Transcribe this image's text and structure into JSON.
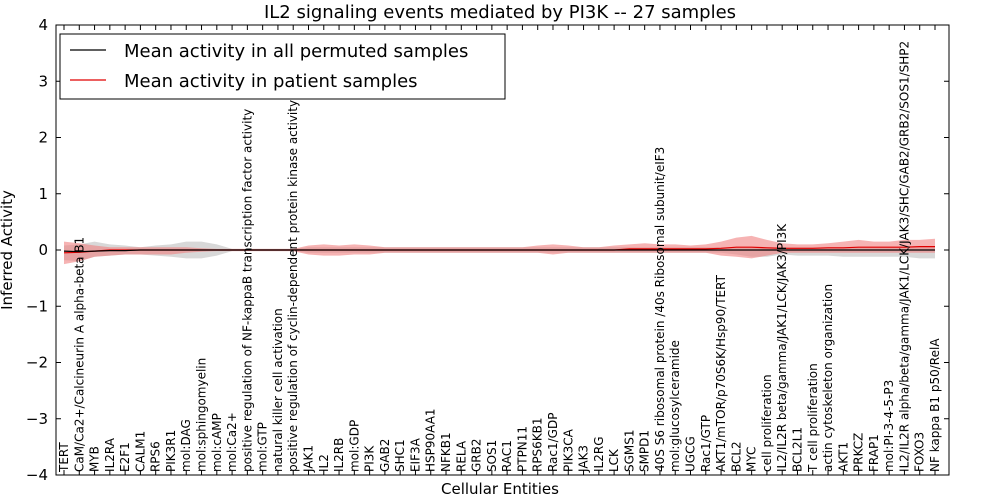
{
  "chart_data": {
    "type": "line",
    "title": "IL2 signaling events mediated by PI3K -- 27 samples",
    "xlabel": "Cellular Entities",
    "ylabel": "Inferred Activity",
    "ylim": [
      -4,
      4
    ],
    "yticks": [
      -4,
      -3,
      -2,
      -1,
      0,
      1,
      2,
      3,
      4
    ],
    "ytick_labels": [
      "−4",
      "−3",
      "−2",
      "−1",
      "0",
      "1",
      "2",
      "3",
      "4"
    ],
    "legend": {
      "placement": "top-left",
      "entries": [
        "Mean activity in all permuted samples",
        "Mean activity in patient samples"
      ]
    },
    "colors": {
      "permuted": "#000000",
      "patient": "#e00000",
      "patient_band": "#f08080",
      "permuted_band": "#c8c8c8"
    },
    "categories": [
      "TERT",
      "CaM/Ca2+/Calcineurin A alpha-beta B1",
      "MYB",
      "IL2RA",
      "E2F1",
      "CALM1",
      "RPS6",
      "PIK3R1",
      "mol:DAG",
      "mol:sphingomyelin",
      "mol:cAMP",
      "mol:Ca2+",
      "positive regulation of NF-kappaB transcription factor activity",
      "mol:GTP",
      "natural killer cell activation",
      "positive regulation of cyclin-dependent protein kinase activity",
      "JAK1",
      "IL2",
      "IL2RB",
      "mol:GDP",
      "PI3K",
      "GAB2",
      "SHC1",
      "EIF3A",
      "HSP90AA1",
      "NFKB1",
      "RELA",
      "GRB2",
      "SOS1",
      "RAC1",
      "PTPN11",
      "RPS6KB1",
      "Rac1/GDP",
      "PIK3CA",
      "JAK3",
      "IL2RG",
      "LCK",
      "SGMS1",
      "SMPD1",
      "40S S6 ribosomal protein /40s Ribosomal subunit/eIF3",
      "mol:glucosylceramide",
      "UGCG",
      "Rac1/GTP",
      "AKT1/mTOR/p70S6K/Hsp90/TERT",
      "BCL2",
      "MYC",
      "cell proliferation",
      "IL2/IL2R beta/gamma/JAK1/LCK/JAK3/PI3K",
      "BCL2L1",
      "T cell proliferation",
      "actin cytoskeleton organization",
      "AKT1",
      "PRKCZ",
      "FRAP1",
      "mol:PI-3-4-5-P3",
      "IL2/IL2R alpha/beta/gamma/JAK1/LCK/JAK3/SHC/GAB2/GRB2/SOS1/SHP2",
      "FOXO3",
      "NF kappa B1 p50/RelA"
    ],
    "series": [
      {
        "name": "Mean activity in all permuted samples",
        "values": [
          -0.02,
          -0.03,
          -0.02,
          -0.01,
          -0.01,
          0,
          0,
          0,
          0,
          0,
          0,
          0,
          0,
          0,
          0,
          0,
          0,
          0,
          0,
          0,
          0,
          0,
          0,
          0,
          0,
          0,
          0,
          0,
          0,
          0,
          0,
          0,
          0,
          0,
          0,
          0,
          0,
          0,
          0,
          0,
          0,
          0,
          0,
          0,
          0,
          0,
          0,
          0,
          0,
          0,
          0,
          0,
          0,
          0,
          0,
          0,
          0,
          0
        ],
        "upper": [
          0.08,
          0.1,
          0.15,
          0.1,
          0.08,
          0.05,
          0.08,
          0.1,
          0.15,
          0.15,
          0.1,
          0.02,
          0.02,
          0.02,
          0.02,
          0.02,
          0.05,
          0.05,
          0.05,
          0.05,
          0.05,
          0.05,
          0.05,
          0.05,
          0.05,
          0.05,
          0.05,
          0.05,
          0.05,
          0.05,
          0.05,
          0.05,
          0.05,
          0.05,
          0.05,
          0.05,
          0.05,
          0.05,
          0.05,
          0.05,
          0.05,
          0.05,
          0.05,
          0.05,
          0.05,
          0.05,
          0.05,
          0.05,
          0.05,
          0.05,
          0.05,
          0.05,
          0.05,
          0.05,
          0.05,
          0.05,
          0.05,
          0.05
        ],
        "lower": [
          -0.18,
          -0.2,
          -0.12,
          -0.1,
          -0.08,
          -0.08,
          -0.1,
          -0.12,
          -0.15,
          -0.15,
          -0.1,
          -0.02,
          -0.02,
          -0.02,
          -0.02,
          -0.02,
          -0.05,
          -0.05,
          -0.05,
          -0.05,
          -0.05,
          -0.05,
          -0.05,
          -0.05,
          -0.05,
          -0.05,
          -0.05,
          -0.05,
          -0.05,
          -0.05,
          -0.05,
          -0.05,
          -0.05,
          -0.05,
          -0.05,
          -0.05,
          -0.05,
          -0.05,
          -0.05,
          -0.05,
          -0.05,
          -0.05,
          -0.05,
          -0.05,
          -0.08,
          -0.12,
          -0.12,
          -0.08,
          -0.1,
          -0.1,
          -0.1,
          -0.12,
          -0.12,
          -0.12,
          -0.12,
          -0.12,
          -0.15,
          -0.15
        ]
      },
      {
        "name": "Mean activity in patient samples",
        "values": [
          -0.05,
          -0.04,
          -0.02,
          0,
          0,
          0,
          0,
          0,
          0,
          0,
          0,
          0,
          0,
          0,
          0,
          0,
          0,
          0,
          0,
          0,
          0,
          0,
          0,
          0,
          0,
          0,
          0,
          0,
          0,
          0,
          0,
          0,
          0,
          0,
          0,
          0,
          0,
          0.02,
          0.02,
          0.02,
          0.02,
          0.02,
          0.02,
          0.03,
          0.05,
          0.05,
          0.04,
          0.03,
          0.03,
          0.03,
          0.04,
          0.04,
          0.05,
          0.05,
          0.05,
          0.05,
          0.06,
          0.06
        ],
        "upper": [
          0.15,
          0.12,
          0.08,
          0.05,
          0.05,
          0.05,
          0.05,
          0.05,
          0.05,
          0.03,
          0.02,
          0.02,
          0.02,
          0.02,
          0.02,
          0.02,
          0.08,
          0.1,
          0.08,
          0.1,
          0.08,
          0.05,
          0.05,
          0.05,
          0.05,
          0.05,
          0.05,
          0.05,
          0.05,
          0.05,
          0.05,
          0.08,
          0.1,
          0.08,
          0.05,
          0.05,
          0.08,
          0.1,
          0.12,
          0.1,
          0.1,
          0.08,
          0.1,
          0.15,
          0.22,
          0.25,
          0.18,
          0.12,
          0.1,
          0.1,
          0.12,
          0.15,
          0.18,
          0.15,
          0.15,
          0.18,
          0.18,
          0.2
        ],
        "lower": [
          -0.25,
          -0.2,
          -0.12,
          -0.1,
          -0.08,
          -0.08,
          -0.08,
          -0.08,
          -0.05,
          -0.03,
          -0.02,
          -0.02,
          -0.02,
          -0.02,
          -0.02,
          -0.02,
          -0.08,
          -0.1,
          -0.1,
          -0.08,
          -0.08,
          -0.05,
          -0.05,
          -0.05,
          -0.05,
          -0.05,
          -0.05,
          -0.05,
          -0.05,
          -0.05,
          -0.05,
          -0.05,
          -0.08,
          -0.05,
          -0.05,
          -0.05,
          -0.05,
          -0.05,
          -0.05,
          -0.05,
          -0.05,
          -0.05,
          -0.05,
          -0.1,
          -0.12,
          -0.15,
          -0.1,
          -0.05,
          -0.05,
          -0.05,
          -0.05,
          -0.05,
          -0.05,
          -0.05,
          -0.05,
          -0.05,
          -0.05,
          -0.05
        ]
      }
    ]
  }
}
